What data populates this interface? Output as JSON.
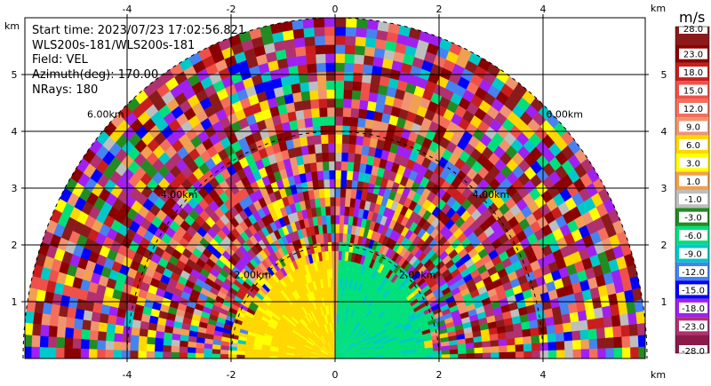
{
  "info": {
    "start_time": "Start time: 2023/07/23 17:02:56.821",
    "instrument": "WLS200s-181/WLS200s-181",
    "field": "Field: VEL",
    "azimuth": "Azimuth(deg): 170.00",
    "nrays": "NRays: 180"
  },
  "colorbar": {
    "unit": "m/s",
    "labels": [
      "28.0",
      "23.0",
      "18.0",
      "15.0",
      "12.0",
      "9.0",
      "6.0",
      "3.0",
      "1.0",
      "-1.0",
      "-3.0",
      "-6.0",
      "-9.0",
      "-12.0",
      "-15.0",
      "-18.0",
      "-23.0",
      "-28.0"
    ],
    "colors": [
      "#8b1a1a",
      "#8b0000",
      "#c81e1e",
      "#f0504a",
      "#f46e5c",
      "#f09470",
      "#ffd700",
      "#ffff00",
      "#f0a050",
      "#bebebe",
      "#228b22",
      "#00e07a",
      "#00c8c8",
      "#4682f0",
      "#0000ff",
      "#a020f0",
      "#b03070",
      "#8b1a4a"
    ]
  },
  "chart_data": {
    "type": "heatmap",
    "title": "",
    "xlabel": "km",
    "ylabel": "km",
    "x_unit_label": "km",
    "y_unit_label": "km",
    "xlim": [
      -6,
      6
    ],
    "ylim": [
      0,
      6
    ],
    "x_ticks": [
      -4,
      -2,
      0,
      2,
      4
    ],
    "y_ticks": [
      1,
      2,
      3,
      4,
      5
    ],
    "grid": true,
    "range_rings_km": [
      2,
      4,
      6
    ],
    "range_ring_labels": [
      "2.00km",
      "4.00km",
      "6.00km"
    ],
    "max_range_km": 6,
    "valid_data_range_km": 2.1,
    "colorbar_bounds": [
      28.0,
      23.0,
      18.0,
      15.0,
      12.0,
      9.0,
      6.0,
      3.0,
      1.0,
      -1.0,
      -3.0,
      -6.0,
      -9.0,
      -12.0,
      -15.0,
      -18.0,
      -23.0,
      -28.0
    ],
    "near_field_sectors": [
      {
        "az_from_deg": 90,
        "az_to_deg": 180,
        "velocity_ms": -7.5,
        "description": "east half, approaching"
      },
      {
        "az_from_deg": 0,
        "az_to_deg": 90,
        "velocity_ms": 4.5,
        "description": "west half, receding"
      },
      {
        "az_from_deg": 88,
        "az_to_deg": 92,
        "velocity_ms": 0.0,
        "description": "near-zero strip"
      }
    ]
  }
}
